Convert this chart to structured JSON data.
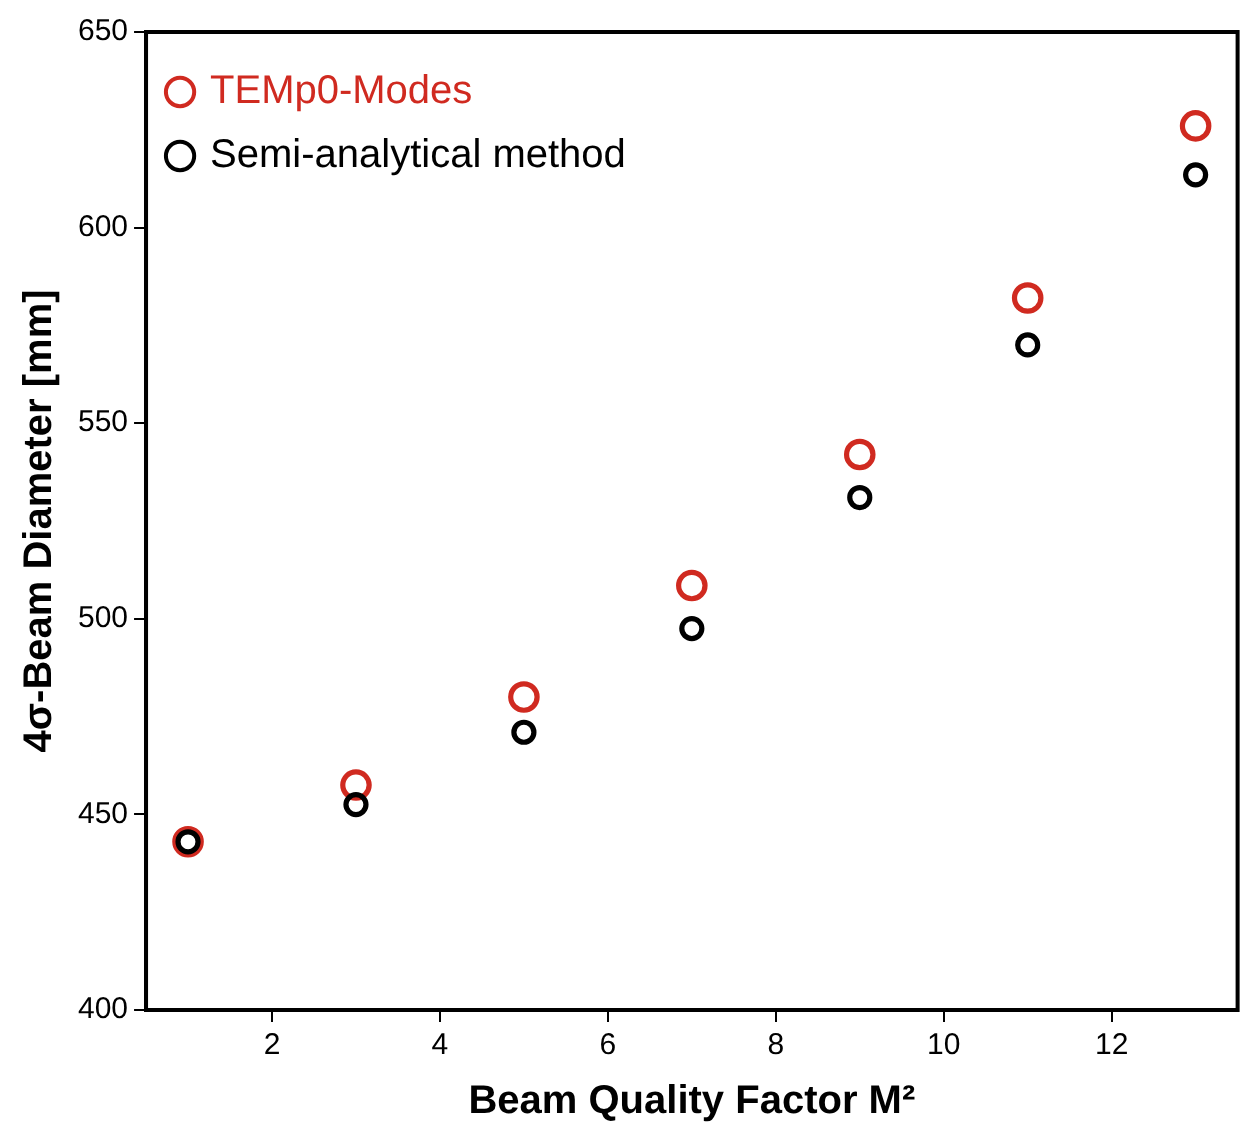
{
  "chart_data": {
    "type": "scatter",
    "xlabel": "Beam Quality Factor M²",
    "ylabel": "4σ-Beam Diameter [mm]",
    "xlim": [
      0.5,
      13.5
    ],
    "xticks": [
      2,
      4,
      6,
      8,
      10,
      12
    ],
    "ylim": [
      400,
      650
    ],
    "yticks": [
      400,
      450,
      500,
      550,
      600,
      650
    ],
    "grid": false,
    "legend": "top left",
    "marker": "circle",
    "series": [
      {
        "name": "TEMp0-Modes",
        "color": "#d02a20",
        "x": [
          1,
          3,
          5,
          7,
          9,
          11,
          13
        ],
        "values": [
          443,
          457.5,
          480,
          508.5,
          542,
          582,
          626
        ]
      },
      {
        "name": "Semi-analytical method",
        "color": "#000000",
        "x": [
          1,
          3,
          5,
          7,
          9,
          11,
          13
        ],
        "values": [
          443,
          452.5,
          471,
          497.5,
          531,
          570,
          613.5
        ]
      }
    ]
  }
}
